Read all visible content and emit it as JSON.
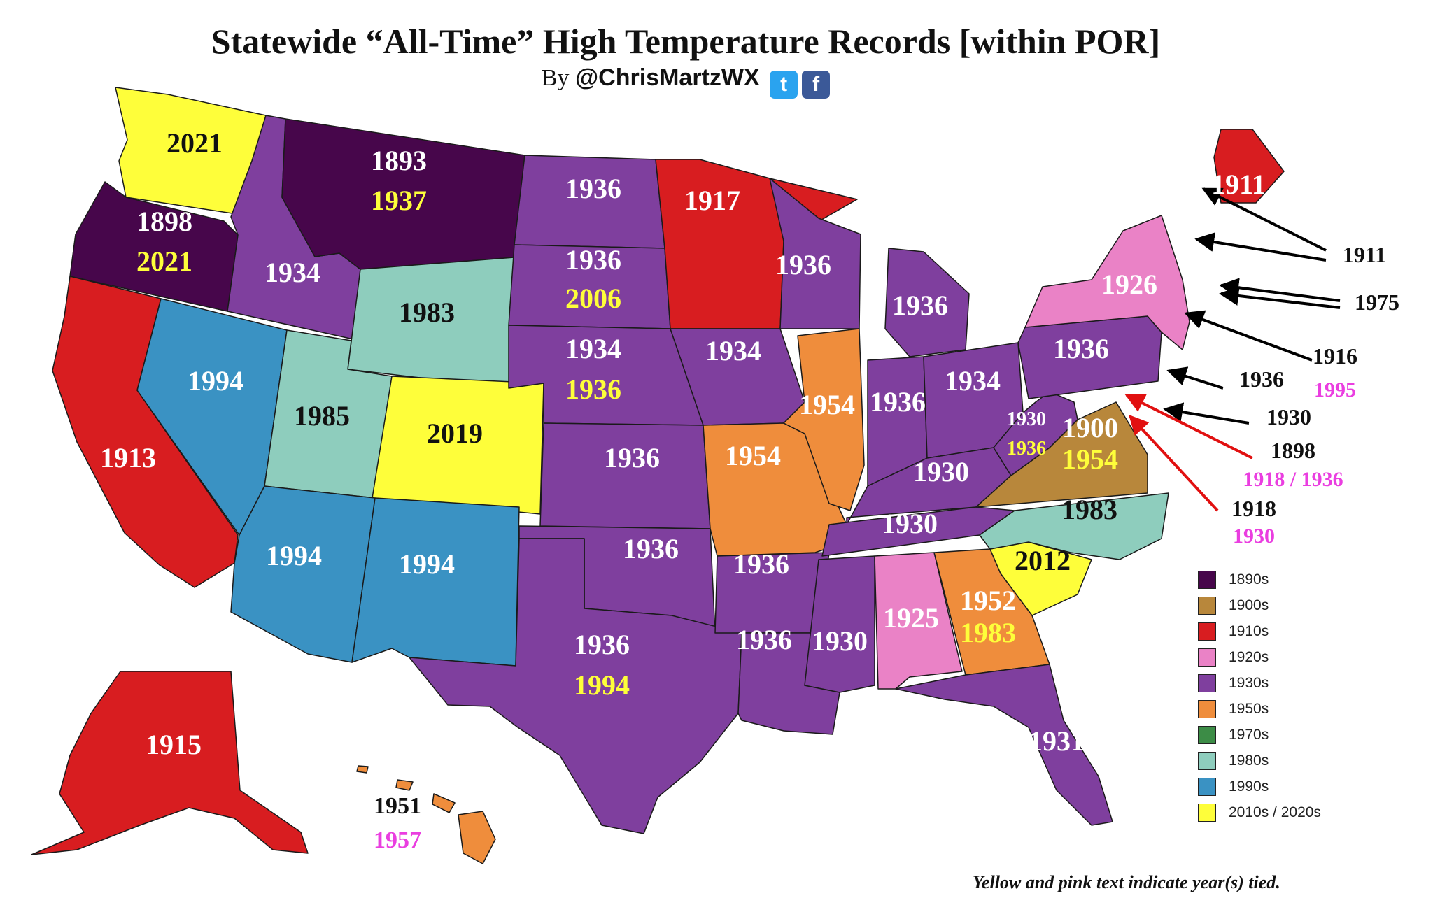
{
  "title": "Statewide “All-Time” High Temperature Records [within POR]",
  "byline": {
    "prefix": "By",
    "handle": "@ChrisMartzWX",
    "twitter_icon": "twitter-icon",
    "facebook_icon": "facebook-icon"
  },
  "colors": {
    "1890s": "#47064b",
    "1900s": "#b8873b",
    "1910s": "#d81d20",
    "1920s": "#ea82c6",
    "1930s": "#7f3f9e",
    "1950s": "#ef8d3c",
    "1970s": "#3c8c46",
    "1980s": "#8ecdbd",
    "1990s": "#3a92c3",
    "2010s": "#fefe3a",
    "tied_yellow": "#fefe3a",
    "tied_pink": "#ea3ee0",
    "arrow_black": "#000000",
    "arrow_red": "#e11010"
  },
  "legend": [
    {
      "label": "1890s",
      "color": "#47064b"
    },
    {
      "label": "1900s",
      "color": "#b8873b"
    },
    {
      "label": "1910s",
      "color": "#d81d20"
    },
    {
      "label": "1920s",
      "color": "#ea82c6"
    },
    {
      "label": "1930s",
      "color": "#7f3f9e"
    },
    {
      "label": "1950s",
      "color": "#ef8d3c"
    },
    {
      "label": "1970s",
      "color": "#3c8c46"
    },
    {
      "label": "1980s",
      "color": "#8ecdbd"
    },
    {
      "label": "1990s",
      "color": "#3a92c3"
    },
    {
      "label": "2010s / 2020s",
      "color": "#fefe3a"
    }
  ],
  "states": [
    {
      "id": "WA",
      "era": "2010s",
      "years": [
        "2021"
      ]
    },
    {
      "id": "OR",
      "era": "1890s",
      "years": [
        "1898",
        "2021"
      ]
    },
    {
      "id": "CA",
      "era": "1910s",
      "years": [
        "1913"
      ]
    },
    {
      "id": "ID",
      "era": "1930s",
      "years": [
        "1934"
      ]
    },
    {
      "id": "NV",
      "era": "1990s",
      "years": [
        "1994"
      ]
    },
    {
      "id": "MT",
      "era": "1890s",
      "years": [
        "1893",
        "1937"
      ]
    },
    {
      "id": "WY",
      "era": "1980s",
      "years": [
        "1983"
      ]
    },
    {
      "id": "UT",
      "era": "1980s",
      "years": [
        "1985"
      ]
    },
    {
      "id": "CO",
      "era": "2010s",
      "years": [
        "2019"
      ]
    },
    {
      "id": "AZ",
      "era": "1990s",
      "years": [
        "1994"
      ]
    },
    {
      "id": "NM",
      "era": "1990s",
      "years": [
        "1994"
      ]
    },
    {
      "id": "ND",
      "era": "1930s",
      "years": [
        "1936"
      ]
    },
    {
      "id": "SD",
      "era": "1930s",
      "years": [
        "1936",
        "2006"
      ]
    },
    {
      "id": "NE",
      "era": "1930s",
      "years": [
        "1934",
        "1936"
      ]
    },
    {
      "id": "KS",
      "era": "1930s",
      "years": [
        "1936"
      ]
    },
    {
      "id": "OK",
      "era": "1930s",
      "years": [
        "1936"
      ]
    },
    {
      "id": "TX",
      "era": "1930s",
      "years": [
        "1936",
        "1994"
      ]
    },
    {
      "id": "MN",
      "era": "1910s",
      "years": [
        "1917"
      ]
    },
    {
      "id": "IA",
      "era": "1930s",
      "years": [
        "1934"
      ]
    },
    {
      "id": "MO",
      "era": "1950s",
      "years": [
        "1954"
      ]
    },
    {
      "id": "AR",
      "era": "1930s",
      "years": [
        "1936"
      ]
    },
    {
      "id": "LA",
      "era": "1930s",
      "years": [
        "1936"
      ]
    },
    {
      "id": "WI",
      "era": "1930s",
      "years": [
        "1936"
      ]
    },
    {
      "id": "IL",
      "era": "1950s",
      "years": [
        "1954"
      ]
    },
    {
      "id": "MI",
      "era": "1930s",
      "years": [
        "1936"
      ]
    },
    {
      "id": "IN",
      "era": "1930s",
      "years": [
        "1936"
      ]
    },
    {
      "id": "OH",
      "era": "1930s",
      "years": [
        "1934"
      ]
    },
    {
      "id": "KY",
      "era": "1930s",
      "years": [
        "1930"
      ]
    },
    {
      "id": "TN",
      "era": "1930s",
      "years": [
        "1930"
      ]
    },
    {
      "id": "MS",
      "era": "1930s",
      "years": [
        "1930"
      ]
    },
    {
      "id": "AL",
      "era": "1920s",
      "years": [
        "1925"
      ]
    },
    {
      "id": "GA",
      "era": "1950s",
      "years": [
        "1952",
        "1983"
      ]
    },
    {
      "id": "FL",
      "era": "1930s",
      "years": [
        "1931"
      ]
    },
    {
      "id": "SC",
      "era": "2010s",
      "years": [
        "2012"
      ]
    },
    {
      "id": "NC",
      "era": "1980s",
      "years": [
        "1983"
      ]
    },
    {
      "id": "VA",
      "era": "1900s",
      "years": [
        "1900",
        "1954"
      ]
    },
    {
      "id": "WV",
      "era": "1930s",
      "years": [
        "1930",
        "1936"
      ]
    },
    {
      "id": "PA",
      "era": "1930s",
      "years": [
        "1936"
      ]
    },
    {
      "id": "NY",
      "era": "1920s",
      "years": [
        "1926"
      ]
    },
    {
      "id": "ME",
      "era": "1910s",
      "years": [
        "1911"
      ]
    },
    {
      "id": "AK",
      "era": "1910s",
      "years": [
        "1915"
      ]
    },
    {
      "id": "HI",
      "era": "1950s",
      "years": [
        "1951",
        "1957"
      ]
    }
  ],
  "callouts": [
    {
      "state": "VT/NH",
      "years": [
        "1911"
      ]
    },
    {
      "state": "CT/MA",
      "years": [
        "1975"
      ]
    },
    {
      "state": "RI",
      "years": [
        "1916",
        "1995"
      ]
    },
    {
      "state": "NJ",
      "years": [
        "1936"
      ]
    },
    {
      "state": "DE",
      "years": [
        "1930"
      ]
    },
    {
      "state": "MD",
      "years": [
        "1898",
        "1918 / 1936"
      ]
    },
    {
      "state": "DC",
      "years": [
        "1918",
        "1930"
      ]
    }
  ],
  "note": "Yellow and pink text indicate year(s) tied."
}
